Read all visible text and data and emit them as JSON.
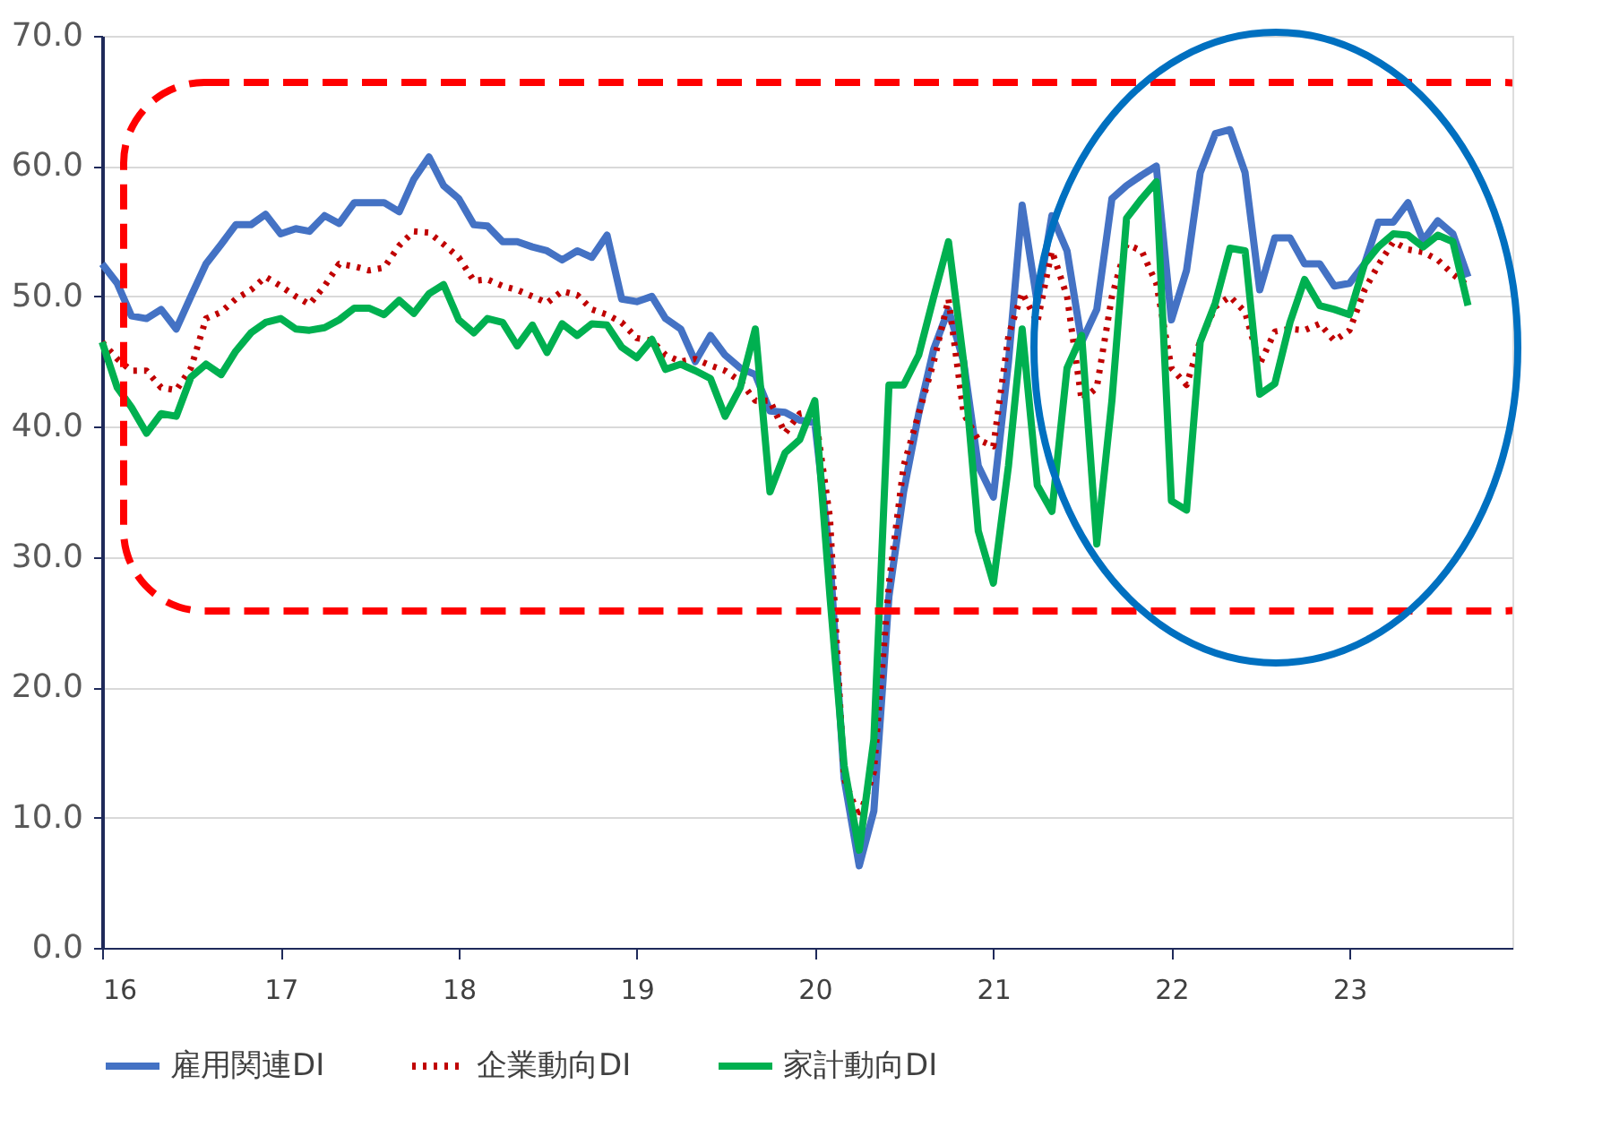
{
  "chart_data": {
    "type": "line",
    "x": [
      "2016-01",
      "2016-02",
      "2016-03",
      "2016-04",
      "2016-05",
      "2016-06",
      "2016-07",
      "2016-08",
      "2016-09",
      "2016-10",
      "2016-11",
      "2016-12",
      "2017-01",
      "2017-02",
      "2017-03",
      "2017-04",
      "2017-05",
      "2017-06",
      "2017-07",
      "2017-08",
      "2017-09",
      "2017-10",
      "2017-11",
      "2017-12",
      "2018-01",
      "2018-02",
      "2018-03",
      "2018-04",
      "2018-05",
      "2018-06",
      "2018-07",
      "2018-08",
      "2018-09",
      "2018-10",
      "2018-11",
      "2018-12",
      "2019-01",
      "2019-02",
      "2019-03",
      "2019-04",
      "2019-05",
      "2019-06",
      "2019-07",
      "2019-08",
      "2019-09",
      "2019-10",
      "2019-11",
      "2019-12",
      "2020-01",
      "2020-02",
      "2020-03",
      "2020-04",
      "2020-05",
      "2020-06",
      "2020-07",
      "2020-08",
      "2020-09",
      "2020-10",
      "2020-11",
      "2020-12",
      "2021-01",
      "2021-02",
      "2021-03",
      "2021-04",
      "2021-05",
      "2021-06",
      "2021-07",
      "2021-08",
      "2021-09",
      "2021-10",
      "2021-11",
      "2021-12",
      "2022-01",
      "2022-02",
      "2022-03",
      "2022-04",
      "2022-05",
      "2022-06",
      "2022-07",
      "2022-08",
      "2022-09",
      "2022-10",
      "2022-11",
      "2022-12",
      "2023-01",
      "2023-02",
      "2023-03",
      "2023-04",
      "2023-05",
      "2023-06",
      "2023-07",
      "2023-08",
      "2023-09"
    ],
    "series": [
      {
        "name": "雇用関連DI",
        "color": "#4472c4",
        "line_style": "solid",
        "values": [
          52.5,
          51,
          48.5,
          48.3,
          49,
          47.5,
          50,
          52.5,
          54,
          55.5,
          55.5,
          56.3,
          54.8,
          55.2,
          55,
          56.2,
          55.6,
          57.2,
          57.2,
          57.2,
          56.5,
          59,
          60.7,
          58.5,
          57.5,
          55.5,
          55.4,
          54.2,
          54.2,
          53.8,
          53.5,
          52.8,
          53.5,
          53,
          54.7,
          49.8,
          49.6,
          50,
          48.3,
          47.5,
          45,
          47,
          45.5,
          44.5,
          44,
          41.2,
          41.1,
          40.5,
          40.3,
          30,
          13,
          6.3,
          10.5,
          27,
          35,
          41,
          46,
          49,
          45,
          37,
          34.6,
          45,
          57,
          49.5,
          56.2,
          53.5,
          46.5,
          49,
          57.5,
          58.5,
          59.3,
          60,
          48.2,
          52,
          59.5,
          62.5,
          62.8,
          59.5,
          50.5,
          54.5,
          54.5,
          52.5,
          52.5,
          50.8,
          51,
          52.5,
          55.7,
          55.7,
          57.2,
          54.3,
          55.8,
          54.8,
          51.5
        ]
      },
      {
        "name": "企業動向DI",
        "color": "#c00000",
        "line_style": "dotted",
        "values": [
          46.5,
          45.2,
          44.3,
          44.3,
          43,
          42.8,
          44.5,
          48.3,
          48.8,
          49.8,
          50.5,
          51.5,
          50.8,
          50,
          49.4,
          50.8,
          52.5,
          52.3,
          52,
          52.2,
          53.9,
          55,
          54.9,
          54,
          53,
          51.2,
          51.3,
          50.8,
          50.5,
          50,
          49.5,
          50.4,
          50.1,
          49,
          48.6,
          48,
          46.8,
          46.6,
          45.5,
          45,
          45.2,
          44.7,
          44.3,
          43.5,
          42,
          42,
          39.5,
          41,
          41.2,
          33,
          13,
          10,
          13.5,
          28,
          37,
          41,
          45,
          49.8,
          41,
          39,
          38.5,
          47,
          50.3,
          48,
          53.5,
          50,
          42,
          43,
          50,
          54,
          53.5,
          51,
          44.5,
          43.2,
          46.6,
          49.2,
          50,
          48.8,
          44.8,
          47.3,
          47.5,
          47.4,
          47.9,
          46.6,
          47.4,
          50.5,
          52.4,
          54.2,
          53.6,
          53.4,
          52.8,
          51.7,
          50.8
        ]
      },
      {
        "name": "家計動向DI",
        "color": "#00b050",
        "line_style": "solid",
        "values": [
          46.5,
          43,
          41.5,
          39.5,
          41,
          40.8,
          43.8,
          44.8,
          44,
          45.8,
          47.2,
          48,
          48.3,
          47.5,
          47.4,
          47.6,
          48.2,
          49.1,
          49.1,
          48.6,
          49.7,
          48.7,
          50.2,
          50.9,
          48.2,
          47.2,
          48.3,
          48,
          46.2,
          47.8,
          45.7,
          47.9,
          47,
          47.9,
          47.8,
          46.1,
          45.3,
          46.7,
          44.4,
          44.8,
          44.3,
          43.7,
          40.8,
          43,
          47.5,
          35,
          38,
          39,
          42,
          27,
          14,
          7.5,
          16,
          43.2,
          43.2,
          45.5,
          50,
          54.2,
          45,
          32,
          28,
          37,
          47.5,
          35.5,
          33.5,
          44.5,
          47,
          31,
          42,
          56,
          57.5,
          58.8,
          34.3,
          33.6,
          46.5,
          49.5,
          53.7,
          53.5,
          42.5,
          43.3,
          48,
          51.3,
          49.3,
          49,
          48.6,
          52.5,
          53.8,
          54.8,
          54.7,
          53.8,
          54.7,
          54.2,
          49.3
        ]
      }
    ],
    "xlim": [
      "2016-01",
      "2023-12"
    ],
    "xticks": [
      {
        "value": "2016-01",
        "label": "16"
      },
      {
        "value": "2017-01",
        "label": "17"
      },
      {
        "value": "2018-01",
        "label": "18"
      },
      {
        "value": "2019-01",
        "label": "19"
      },
      {
        "value": "2020-01",
        "label": "20"
      },
      {
        "value": "2021-01",
        "label": "21"
      },
      {
        "value": "2022-01",
        "label": "22"
      },
      {
        "value": "2023-01",
        "label": "23"
      }
    ],
    "ylim": [
      0,
      70
    ],
    "yticks": [
      {
        "value": 0,
        "label": "0.0"
      },
      {
        "value": 10,
        "label": "10.0"
      },
      {
        "value": 20,
        "label": "20.0"
      },
      {
        "value": 30,
        "label": "30.0"
      },
      {
        "value": 40,
        "label": "40.0"
      },
      {
        "value": 50,
        "label": "50.0"
      },
      {
        "value": 60,
        "label": "60.0"
      },
      {
        "value": 70,
        "label": "70.0"
      }
    ],
    "grid": "y",
    "legend": "bottom"
  }
}
